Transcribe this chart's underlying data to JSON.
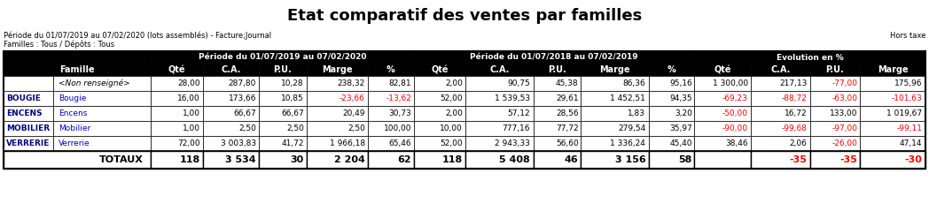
{
  "title": "Etat comparatif des ventes par familles",
  "subtitle_left1": "Période du 01/07/2019 au 07/02/2020 (lots assemblés) - Facture;Journal",
  "subtitle_left2": "Familles : Tous / Dépôts : Tous",
  "subtitle_right": "Hors taxe",
  "header_groups": [
    {
      "label": "Période du 01/07/2019 au 07/02/2020"
    },
    {
      "label": "Période du 01/07/2018 au 07/02/2019"
    },
    {
      "label": "Evolution en %"
    }
  ],
  "rows": [
    {
      "code": "",
      "famille": "<Non renseigné>",
      "v1": [
        "28,00",
        "287,80",
        "10,28",
        "238,32",
        "82,81"
      ],
      "v2": [
        "2,00",
        "90,75",
        "45,38",
        "86,36",
        "95,16"
      ],
      "evo": [
        "1 300,00",
        "217,13",
        "-77,00",
        "175,96"
      ]
    },
    {
      "code": "BOUGIE",
      "famille": "Bougie",
      "v1": [
        "16,00",
        "173,66",
        "10,85",
        "-23,66",
        "-13,62"
      ],
      "v2": [
        "52,00",
        "1 539,53",
        "29,61",
        "1 452,51",
        "94,35"
      ],
      "evo": [
        "-69,23",
        "-88,72",
        "-63,00",
        "-101,63"
      ]
    },
    {
      "code": "ENCENS",
      "famille": "Encens",
      "v1": [
        "1,00",
        "66,67",
        "66,67",
        "20,49",
        "30,73"
      ],
      "v2": [
        "2,00",
        "57,12",
        "28,56",
        "1,83",
        "3,20"
      ],
      "evo": [
        "-50,00",
        "16,72",
        "133,00",
        "1 019,67"
      ]
    },
    {
      "code": "MOBILIER",
      "famille": "Mobilier",
      "v1": [
        "1,00",
        "2,50",
        "2,50",
        "2,50",
        "100,00"
      ],
      "v2": [
        "10,00",
        "777,16",
        "77,72",
        "279,54",
        "35,97"
      ],
      "evo": [
        "-90,00",
        "-99,68",
        "-97,00",
        "-99,11"
      ]
    },
    {
      "code": "VERRERIE",
      "famille": "Verrerie",
      "v1": [
        "72,00",
        "3 003,83",
        "41,72",
        "1 966,18",
        "65,46"
      ],
      "v2": [
        "52,00",
        "2 943,33",
        "56,60",
        "1 336,24",
        "45,40"
      ],
      "evo": [
        "38,46",
        "2,06",
        "-26,00",
        "47,14"
      ]
    }
  ],
  "totals": [
    "118",
    "3 534",
    "30",
    "2 204",
    "62",
    "118",
    "5 408",
    "46",
    "3 156",
    "58",
    "",
    "-35",
    "-35",
    "-30"
  ],
  "header_bg": "#000000",
  "code_color": "#000080",
  "famille_color": "#0000cd",
  "neg_color": "#ff0000",
  "col_hdrs_p1": [
    "Qté",
    "C.A.",
    "P.U.",
    "Marge",
    "%"
  ],
  "col_hdrs_p2": [
    "Qté",
    "C.A.",
    "P.U.",
    "Marge",
    "%"
  ],
  "col_hdrs_evo": [
    "Qté",
    "C.A.",
    "P.U.",
    "Marge"
  ]
}
